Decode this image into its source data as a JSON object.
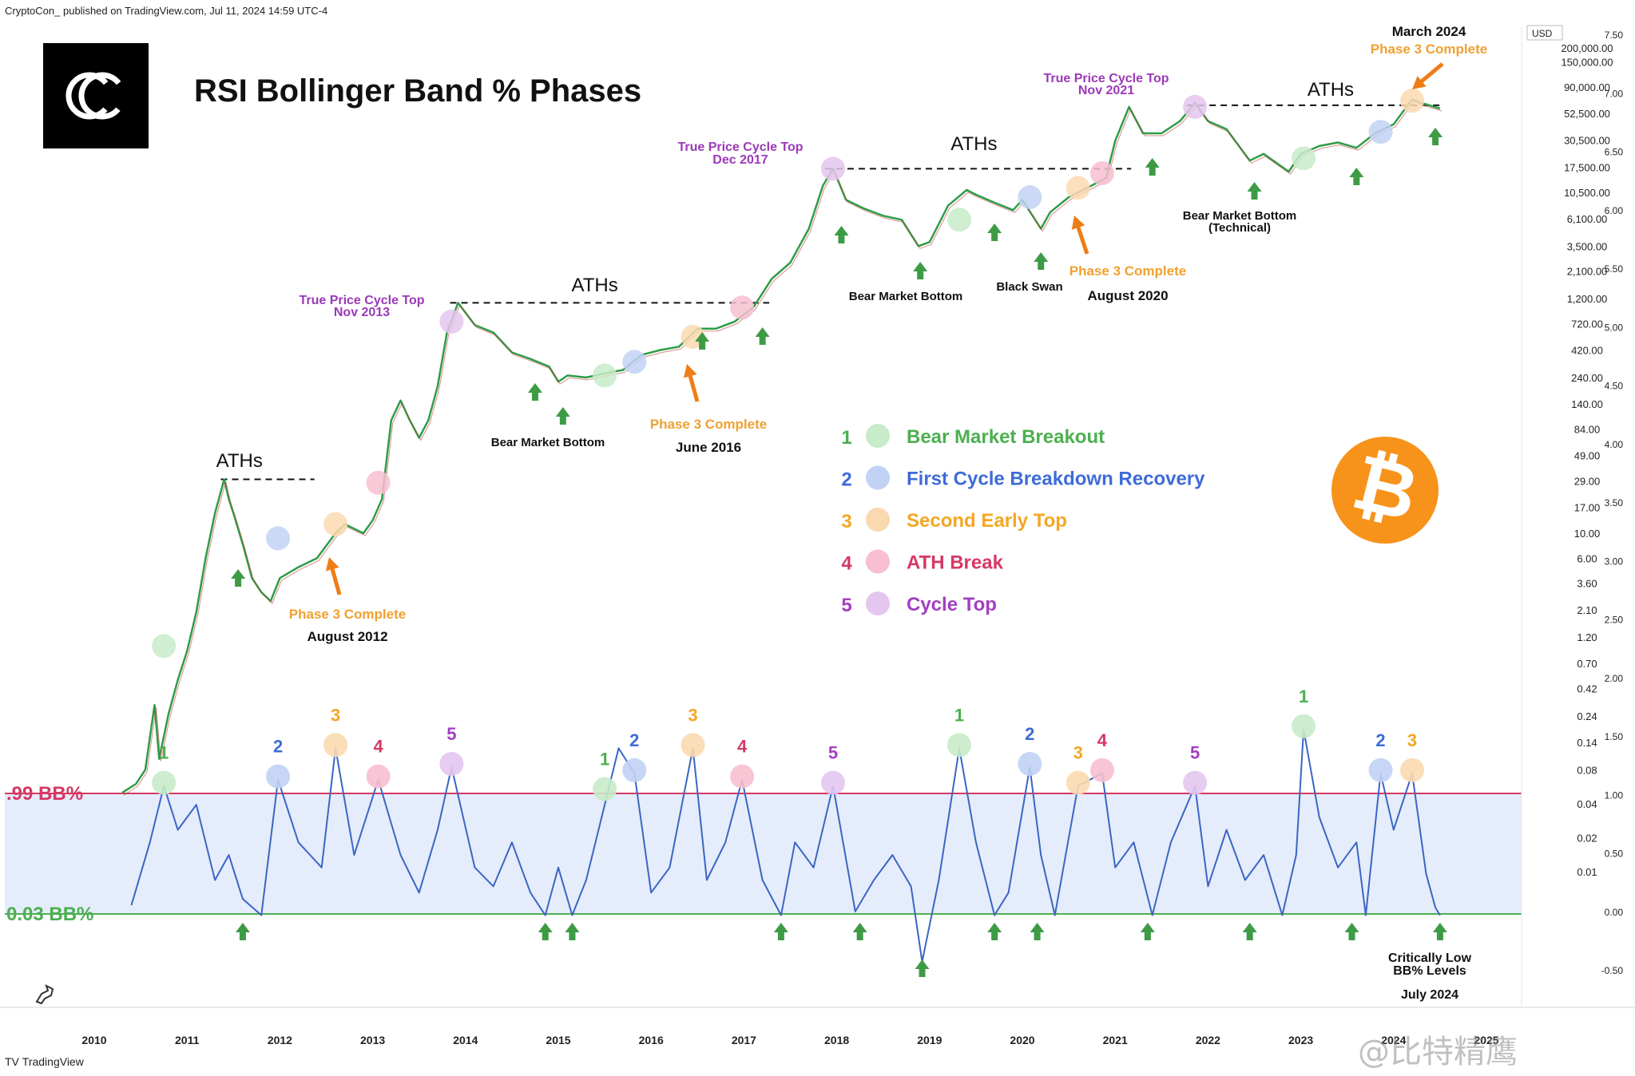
{
  "header": {
    "published": "CryptoCon_ published on TradingView.com, Jul 11, 2024 14:59 UTC-4"
  },
  "footer": {
    "logo": "TV",
    "brand": "TradingView"
  },
  "watermark": "@比特精鹰",
  "title": "RSI Bollinger Band % Phases",
  "colors": {
    "phase1": "#4caf50",
    "phase2": "#3d6bd8",
    "phase3": "#f5a623",
    "phase4": "#d63864",
    "phase5": "#a23fc0",
    "rsi_line": "#3a66c4",
    "band_fill": "#e5ecfb",
    "upper_line": "#d63864",
    "lower_line": "#4caf50",
    "arrow_up": "#3e9b45",
    "arrow_orange": "#ef7d16",
    "bitcoin": "#f7931a"
  },
  "legend": {
    "items": [
      {
        "num": "1",
        "label": "Bear Market Breakout",
        "color": "#4caf50",
        "fill": "#c8ebc9"
      },
      {
        "num": "2",
        "label": "First Cycle Breakdown Recovery",
        "color": "#3d6bd8",
        "fill": "#c2d2f5"
      },
      {
        "num": "3",
        "label": "Second Early Top",
        "color": "#f5a623",
        "fill": "#fbd9b0"
      },
      {
        "num": "4",
        "label": "ATH Break",
        "color": "#d63864",
        "fill": "#f7bfd0"
      },
      {
        "num": "5",
        "label": "Cycle Top",
        "color": "#a23fc0",
        "fill": "#e4c6ef"
      }
    ]
  },
  "bitcoin_icon": "bitcoin-icon",
  "bb_labels": {
    "upper": ".99 BB%",
    "lower": "0.03 BB%"
  },
  "annotations": {
    "aths": [
      "ATHs",
      "ATHs",
      "ATHs",
      "ATHs"
    ],
    "cycle_tops": [
      {
        "line1": "True Price Cycle Top",
        "line2": "Nov 2013"
      },
      {
        "line1": "True Price Cycle Top",
        "line2": "Dec 2017"
      },
      {
        "line1": "True Price Cycle Top",
        "line2": "Nov 2021"
      }
    ],
    "phase3": [
      {
        "label": "Phase 3 Complete",
        "date": "August 2012"
      },
      {
        "label": "Phase 3 Complete",
        "date": "June 2016"
      },
      {
        "label": "Phase 3 Complete",
        "date": "August 2020"
      },
      {
        "label": "Phase 3 Complete",
        "date": "March 2024"
      }
    ],
    "bear_bottom_1": "Bear Market Bottom",
    "bear_bottom_2": "Bear Market Bottom",
    "bear_bottom_3_line1": "Bear Market Bottom",
    "bear_bottom_3_line2": "(Technical)",
    "black_swan": "Black Swan",
    "critical_line1": "Critically Low",
    "critical_line2": "BB% Levels",
    "critical_date": "July 2024"
  },
  "chart_data": [
    {
      "type": "line",
      "title": "RSI Bollinger Band % Phases",
      "series": [
        {
          "name": "",
          "x": [
            2010.3,
            2010.45,
            2010.55,
            2010.65,
            2010.7,
            2010.8,
            2010.9,
            2011.0,
            2011.1,
            2011.2,
            2011.3,
            2011.4,
            2011.45,
            2011.5,
            2011.6,
            2011.7,
            2011.8,
            2011.9,
            2012.0,
            2012.2,
            2012.4,
            2012.6,
            2012.7,
            2012.9,
            2013.0,
            2013.1,
            2013.2,
            2013.3,
            2013.4,
            2013.5,
            2013.6,
            2013.7,
            2013.8,
            2013.92,
            2014.1,
            2014.3,
            2014.5,
            2014.7,
            2014.9,
            2015.0,
            2015.1,
            2015.3,
            2015.5,
            2015.7,
            2015.9,
            2016.1,
            2016.3,
            2016.5,
            2016.7,
            2016.9,
            2017.1,
            2017.3,
            2017.5,
            2017.7,
            2017.85,
            2017.96,
            2018.1,
            2018.3,
            2018.5,
            2018.7,
            2018.88,
            2019.0,
            2019.2,
            2019.4,
            2019.5,
            2019.7,
            2019.9,
            2020.0,
            2020.2,
            2020.3,
            2020.5,
            2020.7,
            2020.9,
            2021.0,
            2021.15,
            2021.3,
            2021.5,
            2021.7,
            2021.86,
            2022.0,
            2022.2,
            2022.45,
            2022.6,
            2022.87,
            2023.0,
            2023.2,
            2023.4,
            2023.6,
            2023.8,
            2024.0,
            2024.2,
            2024.3,
            2024.5
          ],
          "y": [
            0.05,
            0.06,
            0.08,
            0.3,
            0.1,
            0.25,
            0.5,
            0.9,
            2,
            6,
            15,
            30,
            20,
            15,
            8,
            4,
            3,
            2.5,
            4,
            5,
            6,
            10,
            12,
            10,
            13,
            20,
            100,
            150,
            100,
            70,
            100,
            200,
            600,
            1100,
            700,
            600,
            400,
            350,
            300,
            220,
            250,
            240,
            260,
            280,
            380,
            420,
            450,
            650,
            650,
            750,
            1000,
            1800,
            2500,
            5000,
            12000,
            17000,
            9000,
            7500,
            6500,
            6000,
            3500,
            3800,
            8000,
            11000,
            10000,
            8500,
            7300,
            9000,
            5000,
            7000,
            9500,
            11500,
            14000,
            30000,
            60000,
            35000,
            35000,
            45000,
            65000,
            45000,
            38000,
            20000,
            23000,
            16000,
            23000,
            27000,
            29000,
            26000,
            35000,
            42000,
            70000,
            65000,
            58000
          ]
        }
      ],
      "xlabel": "",
      "ylabel": "USD",
      "yscale": "log",
      "yticks": [
        "200,000.00",
        "150,000.00",
        "90,000.00",
        "52,500.00",
        "30,500.00",
        "17,500.00",
        "10,500.00",
        "6,100.00",
        "3,500.00",
        "2,100.00",
        "1,200.00",
        "720.00",
        "420.00",
        "240.00",
        "140.00",
        "84.00",
        "49.00",
        "29.00",
        "17.00",
        "10.00",
        "6.00",
        "3.60",
        "2.10",
        "1.20",
        "0.70",
        "0.42",
        "0.24",
        "0.14",
        "0.08",
        "0.04",
        "0.02",
        "0.01"
      ],
      "xticks": [
        "2010",
        "2011",
        "2012",
        "2013",
        "2014",
        "2015",
        "2016",
        "2017",
        "2018",
        "2019",
        "2020",
        "2021",
        "2022",
        "2023",
        "2024",
        "2025"
      ],
      "secondary_yticks": [
        "7.50",
        "7.00",
        "6.50",
        "6.00",
        "5.50",
        "5.00",
        "4.50",
        "4.00",
        "3.50",
        "3.00",
        "2.50",
        "2.00",
        "1.50",
        "1.00",
        "0.50",
        "0.00",
        "-0.50"
      ],
      "markers": [
        {
          "x": 2010.75,
          "y": 1.0,
          "phase": 1
        },
        {
          "x": 2011.98,
          "y": 9,
          "phase": 2
        },
        {
          "x": 2012.6,
          "y": 12,
          "phase": 3
        },
        {
          "x": 2013.06,
          "y": 28,
          "phase": 4
        },
        {
          "x": 2013.85,
          "y": 750,
          "phase": 5
        },
        {
          "x": 2015.5,
          "y": 250,
          "phase": 1
        },
        {
          "x": 2015.82,
          "y": 330,
          "phase": 2
        },
        {
          "x": 2016.45,
          "y": 550,
          "phase": 3
        },
        {
          "x": 2016.98,
          "y": 1000,
          "phase": 4
        },
        {
          "x": 2017.96,
          "y": 17000,
          "phase": 5
        },
        {
          "x": 2019.32,
          "y": 6000,
          "phase": 1
        },
        {
          "x": 2020.08,
          "y": 9500,
          "phase": 2
        },
        {
          "x": 2020.6,
          "y": 11500,
          "phase": 3
        },
        {
          "x": 2020.86,
          "y": 15500,
          "phase": 4
        },
        {
          "x": 2021.86,
          "y": 60000,
          "phase": 5
        },
        {
          "x": 2023.03,
          "y": 21000,
          "phase": 1
        },
        {
          "x": 2023.86,
          "y": 36000,
          "phase": 2
        },
        {
          "x": 2024.2,
          "y": 68000,
          "phase": 3
        }
      ]
    },
    {
      "type": "line",
      "title": "",
      "ylabel": "",
      "levels": {
        "upper": 0.99,
        "lower": 0.03
      },
      "series": [
        {
          "name": "",
          "x": [
            2010.4,
            2010.6,
            2010.75,
            2010.9,
            2011.1,
            2011.3,
            2011.45,
            2011.6,
            2011.8,
            2011.98,
            2012.2,
            2012.45,
            2012.6,
            2012.8,
            2013.06,
            2013.3,
            2013.5,
            2013.7,
            2013.85,
            2014.1,
            2014.3,
            2014.5,
            2014.7,
            2014.86,
            2015.0,
            2015.15,
            2015.3,
            2015.5,
            2015.65,
            2015.82,
            2016.0,
            2016.2,
            2016.45,
            2016.6,
            2016.8,
            2016.98,
            2017.2,
            2017.4,
            2017.55,
            2017.75,
            2017.96,
            2018.2,
            2018.4,
            2018.6,
            2018.8,
            2018.92,
            2019.1,
            2019.32,
            2019.5,
            2019.7,
            2019.85,
            2020.08,
            2020.2,
            2020.35,
            2020.6,
            2020.86,
            2021.0,
            2021.2,
            2021.4,
            2021.6,
            2021.86,
            2022.0,
            2022.2,
            2022.4,
            2022.6,
            2022.8,
            2022.95,
            2023.03,
            2023.2,
            2023.4,
            2023.6,
            2023.7,
            2023.86,
            2024.0,
            2024.2,
            2024.35,
            2024.45,
            2024.5
          ],
          "y": [
            0.1,
            0.6,
            1.05,
            0.7,
            0.9,
            0.3,
            0.5,
            0.15,
            0.02,
            1.1,
            0.6,
            0.4,
            1.35,
            0.5,
            1.1,
            0.5,
            0.2,
            0.7,
            1.2,
            0.4,
            0.25,
            0.6,
            0.2,
            0.02,
            0.4,
            0.02,
            0.3,
            0.9,
            1.35,
            1.15,
            0.2,
            0.4,
            1.35,
            0.3,
            0.6,
            1.1,
            0.3,
            0.02,
            0.6,
            0.4,
            1.05,
            0.05,
            0.3,
            0.5,
            0.25,
            -0.35,
            0.3,
            1.35,
            0.6,
            0.02,
            0.2,
            1.2,
            0.5,
            0.02,
            1.05,
            1.15,
            0.4,
            0.6,
            0.02,
            0.6,
            1.05,
            0.25,
            0.7,
            0.3,
            0.5,
            0.02,
            0.5,
            1.5,
            0.8,
            0.4,
            0.6,
            0.02,
            1.15,
            0.7,
            1.15,
            0.35,
            0.08,
            0.02
          ]
        }
      ],
      "ylim": [
        -0.5,
        1.6
      ]
    }
  ]
}
